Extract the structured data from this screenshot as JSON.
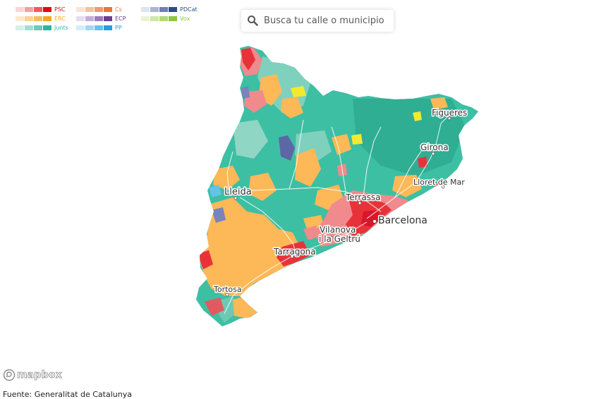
{
  "legend": [
    {
      "label": "PSC",
      "label_color": "#e30613",
      "colors": [
        "#fbd5d5",
        "#f3a0a2",
        "#ea5a5f",
        "#e30613"
      ]
    },
    {
      "label": "Cs",
      "label_color": "#ea7a3c",
      "colors": [
        "#fbe3d5",
        "#f5c0a0",
        "#ee9a6c",
        "#e9763b"
      ]
    },
    {
      "label": "PDCat",
      "label_color": "#2b4c8c",
      "colors": [
        "#dfe3ef",
        "#a9b3d3",
        "#6e7fb3",
        "#2b4c8c"
      ]
    },
    {
      "label": "ERC",
      "label_color": "#f5a623",
      "colors": [
        "#fde9cc",
        "#fcd298",
        "#f9bb62",
        "#f5a623"
      ]
    },
    {
      "label": "ECP",
      "label_color": "#6a3d8e",
      "colors": [
        "#e6dcef",
        "#c3aed6",
        "#9c7bbb",
        "#6a3d8e"
      ]
    },
    {
      "label": "Vox",
      "label_color": "#8dc63f",
      "colors": [
        "#e8f4d6",
        "#cde8a8",
        "#b0da78",
        "#8dc63f"
      ]
    },
    {
      "label": "Junts",
      "label_color": "#2fb4a0",
      "colors": [
        "#d6f0eb",
        "#a6ddd3",
        "#6fc9b9",
        "#2fb4a0"
      ]
    },
    {
      "label": "PP",
      "label_color": "#1fa2dc",
      "colors": [
        "#d4edf8",
        "#a3d8f0",
        "#6ac0e7",
        "#1fa2dc"
      ]
    }
  ],
  "search": {
    "placeholder": "Busca tu calle o municipio",
    "icon": "search-icon"
  },
  "cities": {
    "figueres": "Figueres",
    "girona": "Girona",
    "lloret": "Lloret de Mar",
    "lleida": "Lleida",
    "terrassa": "Terrassa",
    "barcelona": "Barcelona",
    "vilanova_1": "Vilanova",
    "vilanova_2": "i la Geltrú",
    "tarragona": "Tarragona",
    "tortosa": "Tortosa"
  },
  "attribution": {
    "logo": "mapbox",
    "source": "Fuente: Generalitat de Catalunya"
  },
  "colors": {
    "junts": "#3dbfa3",
    "erc": "#fdb857",
    "psc": "#e8323a",
    "pdcat": "#5d67a6",
    "vox": "#f2ea2e",
    "pp": "#63c3e8"
  }
}
